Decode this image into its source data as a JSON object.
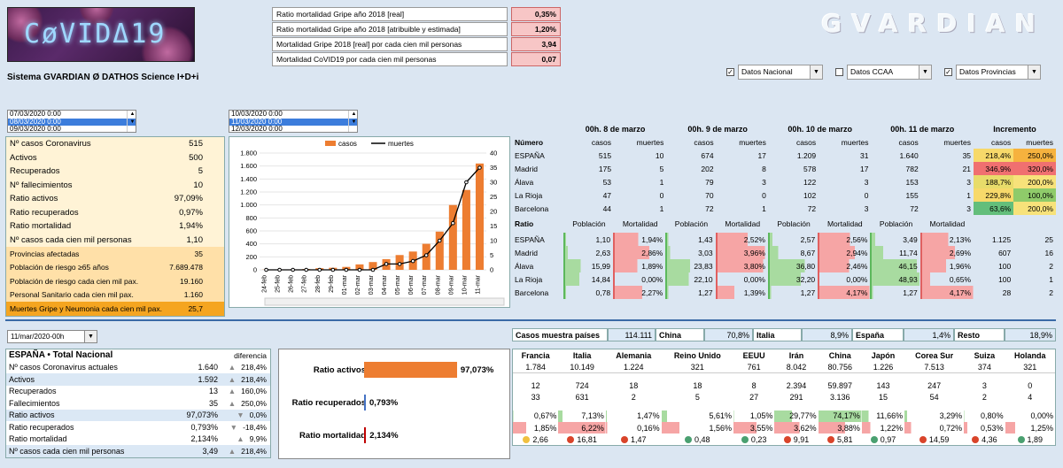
{
  "logo": {
    "text": "CøVIDΔ19"
  },
  "brand": "GVARDIAN",
  "top_table": [
    {
      "label": "Ratio mortalidad Gripe año 2018 [real]",
      "value": "0,35%"
    },
    {
      "label": "Ratio mortalidad Gripe año 2018 [atribuible y estimada]",
      "value": "1,20%"
    },
    {
      "label": "Mortalidad Gripe 2018 [real] por cada cien mil personas",
      "value": "3,94"
    },
    {
      "label": "Mortalidad CoVID19 por cada cien mil personas",
      "value": "0,07"
    }
  ],
  "subtitle": "Sistema GVARDIAN Ø DATHOS Science I+D+i",
  "filters": [
    {
      "checked": "✓",
      "label": "Datos Nacional"
    },
    {
      "checked": "",
      "label": "Datos CCAA"
    },
    {
      "checked": "✓",
      "label": "Datos Provincias"
    }
  ],
  "list1": [
    "07/03/2020 0:00",
    "08/03/2020 0:00",
    "09/03/2020 0:00"
  ],
  "list2": [
    "10/03/2020 0:00",
    "11/03/2020 0:00",
    "12/03/2020 0:00"
  ],
  "kpis": [
    {
      "label": "Nº casos Coronavirus",
      "value": "515"
    },
    {
      "label": "Activos",
      "value": "500"
    },
    {
      "label": "Recuperados",
      "value": "5"
    },
    {
      "label": "Nº fallecimientos",
      "value": "10"
    },
    {
      "label": "Ratio activos",
      "value": "97,09%"
    },
    {
      "label": "Ratio recuperados",
      "value": "0,97%"
    },
    {
      "label": "Ratio mortalidad",
      "value": "1,94%"
    },
    {
      "label": "Nº casos cada cien mil personas",
      "value": "1,10"
    }
  ],
  "kpis2": [
    {
      "label": "Provincias afectadas",
      "value": "35"
    },
    {
      "label": "Población de riesgo ≥65 años",
      "value": "7.689.478"
    },
    {
      "label": "Población de riesgo cada cien mil pax.",
      "value": "19.160"
    },
    {
      "label": "Personal Sanitario cada cien mil pax.",
      "value": "1.160"
    },
    {
      "label": "Muertes Gripe y Neumonia cada cien mil pax.",
      "value": "25,7"
    }
  ],
  "chart_data": {
    "type": "bar",
    "legend": [
      "casos",
      "muertes"
    ],
    "categories": [
      "24-feb",
      "25-feb",
      "26-feb",
      "27-feb",
      "28-feb",
      "29-feb",
      "01-mar",
      "02-mar",
      "03-mar",
      "04-mar",
      "05-mar",
      "06-mar",
      "07-mar",
      "08-mar",
      "09-mar",
      "10-mar",
      "11-mar"
    ],
    "casos": [
      3,
      6,
      7,
      12,
      25,
      32,
      45,
      84,
      120,
      165,
      228,
      282,
      401,
      589,
      999,
      1231,
      1639
    ],
    "muertes": [
      0,
      0,
      0,
      0,
      0,
      0,
      0,
      0,
      0,
      2,
      2,
      3,
      5,
      10,
      16,
      30,
      35
    ],
    "yleft": [
      "0",
      "200",
      "400",
      "600",
      "800",
      "1.000",
      "1.200",
      "1.400",
      "1.600",
      "1.800"
    ],
    "yright": [
      "0",
      "5",
      "10",
      "15",
      "20",
      "25",
      "30",
      "35",
      "40"
    ]
  },
  "dates": [
    "00h. 8 de marzo",
    "00h. 9 de marzo",
    "00h. 10 de marzo",
    "00h. 11 de marzo",
    "Incremento"
  ],
  "num_head": {
    "title": "Número",
    "c": "casos",
    "m": "muertes"
  },
  "num_rows": [
    {
      "n": "ESPAÑA",
      "v": [
        "515",
        "10",
        "674",
        "17",
        "1.209",
        "31",
        "1.640",
        "35"
      ],
      "i1": "218,4%",
      "i2": "250,0%",
      "c1": "#f7d96a",
      "c2": "#f6b23e"
    },
    {
      "n": "Madrid",
      "v": [
        "175",
        "5",
        "202",
        "8",
        "578",
        "17",
        "782",
        "21"
      ],
      "i1": "346,9%",
      "i2": "320,0%",
      "c1": "#f07070",
      "c2": "#f07070"
    },
    {
      "n": "Álava",
      "v": [
        "53",
        "1",
        "79",
        "3",
        "122",
        "3",
        "153",
        "3"
      ],
      "i1": "188,7%",
      "i2": "200,0%",
      "c1": "#e8dc6a",
      "c2": "#f7e27a"
    },
    {
      "n": "La Rioja",
      "v": [
        "47",
        "0",
        "70",
        "0",
        "102",
        "0",
        "155",
        "1"
      ],
      "i1": "229,8%",
      "i2": "100,0%",
      "c1": "#f7d96a",
      "c2": "#8fcb6a"
    },
    {
      "n": "Barcelona",
      "v": [
        "44",
        "1",
        "72",
        "1",
        "72",
        "3",
        "72",
        "3"
      ],
      "i1": "63,6%",
      "i2": "200,0%",
      "c1": "#63be7b",
      "c2": "#f7e27a"
    }
  ],
  "ratio_head": {
    "title": "Ratio",
    "p": "Población",
    "m": "Mortalidad"
  },
  "ratio_rows": [
    {
      "n": "ESPAÑA",
      "v": [
        "1,10",
        "1,94%",
        "1,43",
        "2,52%",
        "2,57",
        "2,56%",
        "3,49",
        "2,13%"
      ],
      "e": [
        "1.125",
        "25"
      ]
    },
    {
      "n": "Madrid",
      "v": [
        "2,63",
        "2,86%",
        "3,03",
        "3,96%",
        "8,67",
        "2,94%",
        "11,74",
        "2,69%"
      ],
      "e": [
        "607",
        "16"
      ]
    },
    {
      "n": "Álava",
      "v": [
        "15,99",
        "1,89%",
        "23,83",
        "3,80%",
        "36,80",
        "2,46%",
        "46,15",
        "1,96%"
      ],
      "e": [
        "100",
        "2"
      ]
    },
    {
      "n": "La Rioja",
      "v": [
        "14,84",
        "0,00%",
        "22,10",
        "0,00%",
        "32,20",
        "0,00%",
        "48,93",
        "0,65%"
      ],
      "e": [
        "100",
        "1"
      ]
    },
    {
      "n": "Barcelona",
      "v": [
        "0,78",
        "2,27%",
        "1,27",
        "1,39%",
        "1,27",
        "4,17%",
        "1,27",
        "4,17%"
      ],
      "e": [
        "28",
        "2"
      ]
    }
  ],
  "date_select": "11/mar/2020-00h",
  "nat": {
    "title": "ESPAÑA • Total Nacional",
    "diff": "diferencia",
    "rows": [
      {
        "l": "Nº casos Coronavirus actuales",
        "v": "1.640",
        "d": "218,4%",
        "ar": "▲"
      },
      {
        "l": "Activos",
        "v": "1.592",
        "d": "218,4%",
        "ar": "▲"
      },
      {
        "l": "Recuperados",
        "v": "13",
        "d": "160,0%",
        "ar": "▲"
      },
      {
        "l": "Fallecimientos",
        "v": "35",
        "d": "250,0%",
        "ar": "▲"
      },
      {
        "l": "Ratio activos",
        "v": "97,073%",
        "d": "0,0%",
        "ar": "▼"
      },
      {
        "l": "Ratio recuperados",
        "v": "0,793%",
        "d": "-18,4%",
        "ar": "▼"
      },
      {
        "l": "Ratio mortalidad",
        "v": "2,134%",
        "d": "9,9%",
        "ar": "▲"
      },
      {
        "l": "Nº casos cada cien mil personas",
        "v": "3,49",
        "d": "218,4%",
        "ar": "▲"
      }
    ]
  },
  "bars": [
    {
      "l": "Ratio activos",
      "v": "97,073%",
      "p": 97.073,
      "c": "#ed7d31"
    },
    {
      "l": "Ratio recuperados",
      "v": "0,793%",
      "p": 0.793,
      "c": "#4472c4"
    },
    {
      "l": "Ratio mortalidad",
      "v": "2,134%",
      "p": 2.134,
      "c": "#c00000"
    }
  ],
  "muestra": [
    {
      "t": "Casos muestra países",
      "b": true
    },
    {
      "t": "114.111"
    },
    {
      "t": "China",
      "b": true
    },
    {
      "t": "70,8%"
    },
    {
      "t": "Italia",
      "b": true
    },
    {
      "t": "8,9%"
    },
    {
      "t": "España",
      "b": true
    },
    {
      "t": "1,4%"
    },
    {
      "t": "Resto",
      "b": true
    },
    {
      "t": "18,9%"
    }
  ],
  "countries": [
    "Francia",
    "Italia",
    "Alemania",
    "Reino Unido",
    "EEUU",
    "Irán",
    "China",
    "Japón",
    "Corea Sur",
    "Suiza",
    "Holanda"
  ],
  "c_cases": [
    "1.784",
    "10.149",
    "1.224",
    "321",
    "761",
    "8.042",
    "80.756",
    "1.226",
    "7.513",
    "374",
    "321"
  ],
  "c_rec": [
    "12",
    "724",
    "18",
    "18",
    "8",
    "2.394",
    "59.897",
    "143",
    "247",
    "3",
    "0"
  ],
  "c_dead": [
    "33",
    "631",
    "2",
    "5",
    "27",
    "291",
    "3.136",
    "15",
    "54",
    "2",
    "4"
  ],
  "c_r1": [
    "0,67%",
    "7,13%",
    "1,47%",
    "5,61%",
    "1,05%",
    "29,77%",
    "74,17%",
    "11,66%",
    "3,29%",
    "0,80%",
    "0,00%"
  ],
  "c_r2": [
    "1,85%",
    "6,22%",
    "0,16%",
    "1,56%",
    "3,55%",
    "3,62%",
    "3,88%",
    "1,22%",
    "0,72%",
    "0,53%",
    "1,25%"
  ],
  "c_r3": [
    "2,66",
    "16,81",
    "1,47",
    "0,48",
    "0,23",
    "9,91",
    "5,81",
    "0,97",
    "14,59",
    "4,36",
    "1,89"
  ],
  "c_dots": [
    "#f0c040",
    "#d9442a",
    "#d9442a",
    "#4aa070",
    "#4aa070",
    "#d9442a",
    "#d9442a",
    "#4aa070",
    "#d9442a",
    "#d9442a",
    "#4aa070"
  ]
}
